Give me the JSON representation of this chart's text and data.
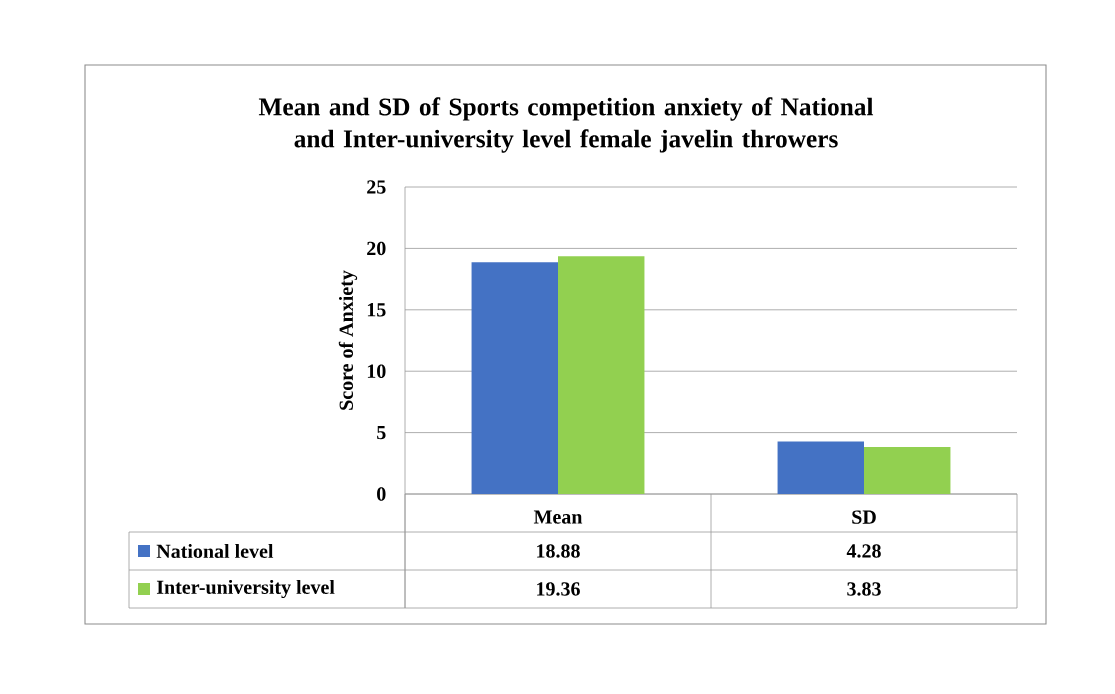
{
  "chart_data": {
    "type": "bar",
    "title": "Mean and SD of Sports competition anxiety of National and Inter-university level female javelin throwers",
    "ylabel": "Score of Anxiety",
    "categories": [
      "Mean",
      "SD"
    ],
    "series": [
      {
        "name": "National level",
        "color": "#4472c4",
        "values": [
          18.88,
          4.28
        ]
      },
      {
        "name": "Inter-university level",
        "color": "#92d050",
        "values": [
          19.36,
          3.83
        ]
      }
    ],
    "ylim": [
      0,
      25
    ],
    "yticks": [
      0,
      5,
      10,
      15,
      20,
      25
    ],
    "grid": "y",
    "legend": "bottom",
    "data_labels": true
  }
}
